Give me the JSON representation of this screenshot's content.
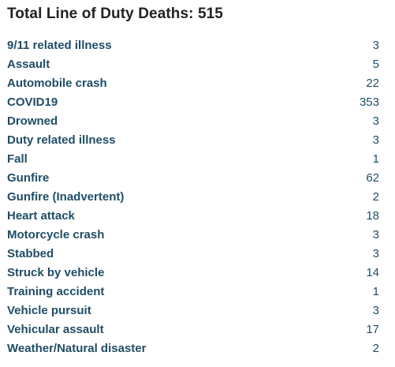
{
  "title": "Total Line of Duty Deaths: 515",
  "causes": [
    {
      "label": "9/11 related illness",
      "count": "3"
    },
    {
      "label": "Assault",
      "count": "5"
    },
    {
      "label": "Automobile crash",
      "count": "22"
    },
    {
      "label": "COVID19",
      "count": "353"
    },
    {
      "label": "Drowned",
      "count": "3"
    },
    {
      "label": "Duty related illness",
      "count": "3"
    },
    {
      "label": "Fall",
      "count": "1"
    },
    {
      "label": "Gunfire",
      "count": "62"
    },
    {
      "label": "Gunfire (Inadvertent)",
      "count": "2"
    },
    {
      "label": "Heart attack",
      "count": "18"
    },
    {
      "label": "Motorcycle crash",
      "count": "3"
    },
    {
      "label": "Stabbed",
      "count": "3"
    },
    {
      "label": "Struck by vehicle",
      "count": "14"
    },
    {
      "label": "Training accident",
      "count": "1"
    },
    {
      "label": "Vehicle pursuit",
      "count": "3"
    },
    {
      "label": "Vehicular assault",
      "count": "17"
    },
    {
      "label": "Weather/Natural disaster",
      "count": "2"
    }
  ],
  "colors": {
    "title": "#222222",
    "link": "#1f4d66"
  }
}
